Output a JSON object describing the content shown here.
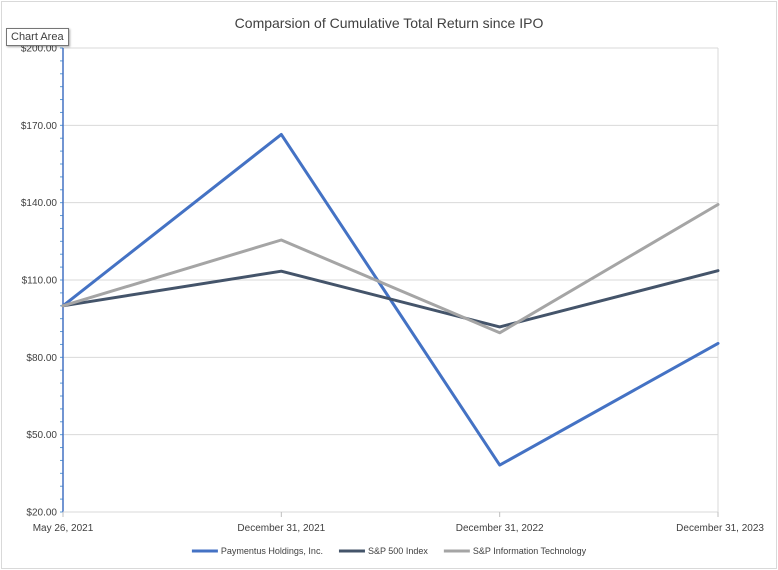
{
  "tooltip": {
    "label": "Chart Area"
  },
  "chart_data": {
    "type": "line",
    "title": "Comparsion of Cumulative Total Return since IPO",
    "x": [
      "May 26, 2021",
      "December 31, 2021",
      "December 31, 2022",
      "December 31, 2023"
    ],
    "ylim": [
      20,
      200
    ],
    "y_ticks": [
      20,
      50,
      80,
      110,
      140,
      170,
      200
    ],
    "y_tick_labels": [
      "$20.00",
      "$50.00",
      "$80.00",
      "$110.00",
      "$140.00",
      "$170.00",
      "$200.00"
    ],
    "grid": true,
    "legend_position": "bottom",
    "series": [
      {
        "name": "Paymentus Holdings, Inc.",
        "color": "#4472c4",
        "values": [
          100,
          166.5,
          38.2,
          85.4
        ]
      },
      {
        "name": "S&P 500 Index",
        "color": "#44546a",
        "values": [
          100,
          113.4,
          91.8,
          113.6
        ]
      },
      {
        "name": "S&P Information Technology",
        "color": "#a5a5a5",
        "values": [
          100,
          125.5,
          89.5,
          139.3
        ]
      }
    ]
  }
}
